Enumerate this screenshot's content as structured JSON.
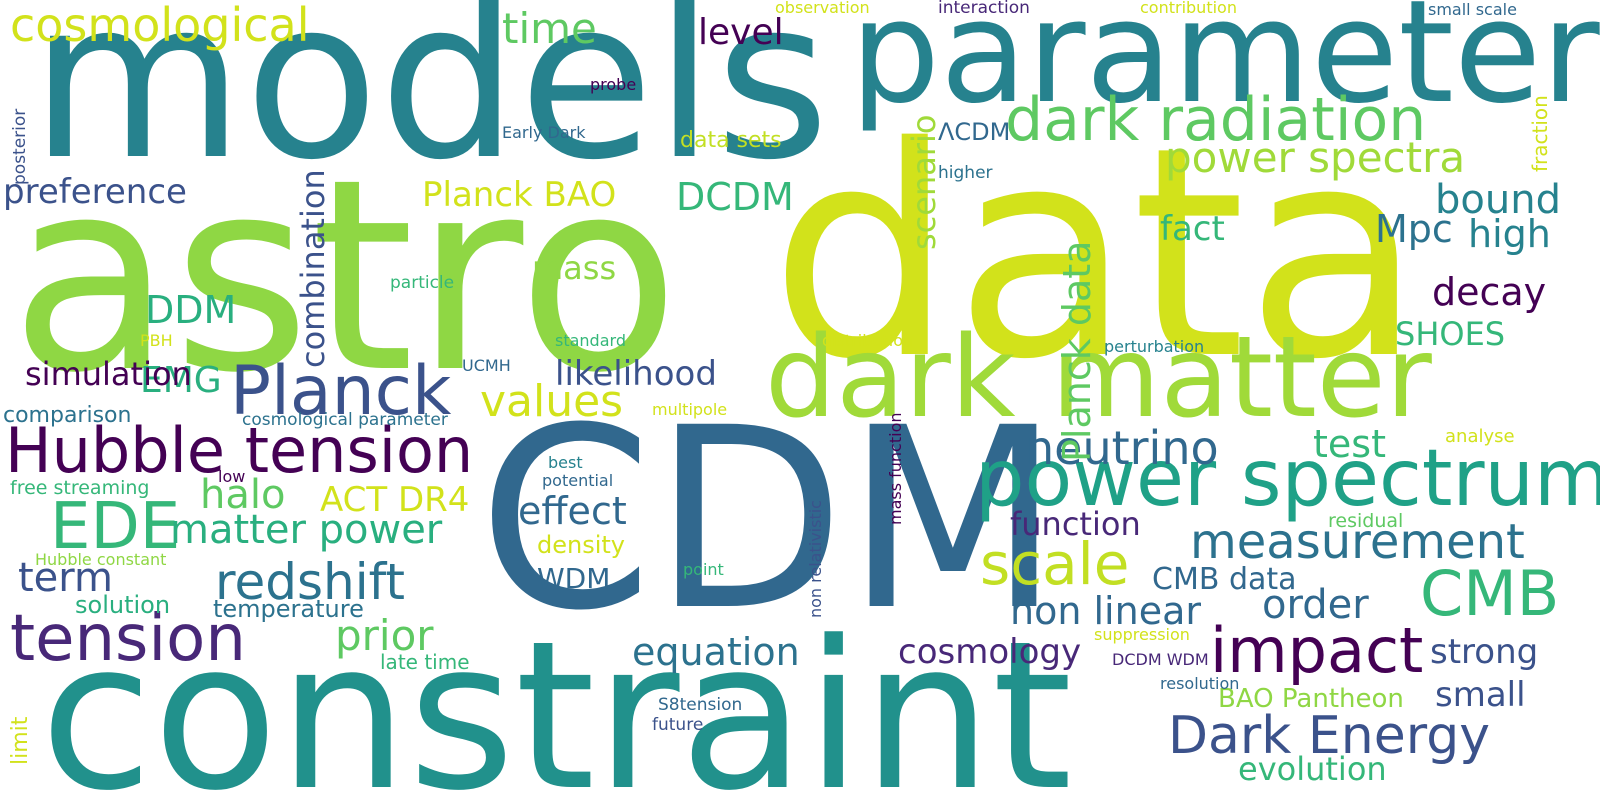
{
  "palette": {
    "background": "#ffffff",
    "yellow": "#d2e21b",
    "lime": "#8fd744",
    "green": "#5ec962",
    "teal_green": "#35b779",
    "teal": "#21918c",
    "blue_teal": "#26828e",
    "slate_blue": "#31688e",
    "indigo": "#3b528b",
    "purple": "#482878",
    "dark_purple": "#440154"
  },
  "words": {
    "astro": "astro",
    "data": "data",
    "models": "models",
    "constraint": "constraint",
    "parameter": "parameter",
    "cdm": "CDM",
    "dark_matter": "dark matter",
    "power_spectrum": "power spectrum",
    "dark_radiation": "dark radiation",
    "planck": "Planck",
    "hubble_tension": "Hubble tension",
    "tension": "tension",
    "cosmological": "cosmological",
    "impact": "impact",
    "edm_ede": "EDE",
    "redshift": "redshift",
    "scale": "scale",
    "cmb": "CMB",
    "dark_energy": "Dark Energy",
    "neutrino": "neutrino",
    "measurement": "measurement",
    "power_spectra": "power spectra",
    "matter_power": "matter power",
    "values": "values",
    "planck_data": "Planck data",
    "time": "time",
    "preference": "preference",
    "planck_bao": "Planck BAO",
    "dcdm": "DCDM",
    "ddm": "DDM",
    "combination": "combination",
    "halo": "halo",
    "act_dr4": "ACT DR4",
    "effect": "effect",
    "prior": "prior",
    "term": "term",
    "likelihood": "likelihood",
    "emg": "EMG",
    "simulation": "simulation",
    "decay": "decay",
    "shoes": "SHOES",
    "bound": "bound",
    "mpc": "Mpc",
    "high": "high",
    "fact": "fact",
    "mass": "mass",
    "scenario": "scenario",
    "test": "test",
    "function": "function",
    "non_linear": "non linear",
    "order": "order",
    "cmb_data": "CMB data",
    "equation": "equation",
    "cosmology": "cosmology",
    "strong": "strong",
    "small": "small",
    "evolution": "evolution",
    "bao_pantheon": "BAO Pantheon",
    "level": "level",
    "wdm": "WDM",
    "density": "density",
    "solution": "solution",
    "temperature": "temperature",
    "comparison": "comparison",
    "lcdm": "ΛCDM",
    "data_sets": "data sets",
    "early_dark": "Early Dark",
    "probe": "probe",
    "observation": "observation",
    "interaction": "interaction",
    "contribution": "contribution",
    "small_scale": "small scale",
    "fraction": "fraction",
    "posterior": "posterior",
    "higher": "higher",
    "particle": "particle",
    "pbh": "PBH",
    "standard": "standard",
    "distribution": "distribution",
    "perturbation": "perturbation",
    "ucmh": "UCMH",
    "multipole": "multipole",
    "cosmological_parameter": "cosmological parameter",
    "analyse": "analyse",
    "best": "best",
    "potential": "potential",
    "low": "low",
    "free_streaming": "free streaming",
    "residual": "residual",
    "hubble_constant": "Hubble constant",
    "point": "point",
    "non_relativistic": "non relativistic",
    "mass_function": "mass function",
    "suppression": "suppression",
    "dcdm_wdm": "DCDM WDM",
    "resolution": "resolution",
    "s8tension": "S8tension",
    "future": "future",
    "late_time": "late time",
    "limit": "limit"
  }
}
